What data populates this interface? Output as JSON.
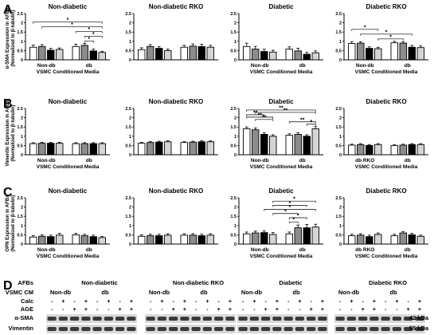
{
  "panel_letters": [
    "A",
    "B",
    "C",
    "D"
  ],
  "chart_data": [
    {
      "panel": "A",
      "type": "bar",
      "title": "Non-diabetic",
      "ylabel_lines": [
        "α-SMA Expression in AFBs",
        "(Normalized to β-tubulin)"
      ],
      "xlabel": "VSMC Conditioned Media",
      "groups": [
        "Non-db",
        "db"
      ],
      "ylim": [
        0,
        2.5
      ],
      "yticks": [
        0,
        0.5,
        1,
        1.5,
        2,
        2.5
      ],
      "values": [
        0.68,
        0.72,
        0.52,
        0.56,
        0.72,
        0.78,
        0.48,
        0.4
      ],
      "errors": [
        0.12,
        0.1,
        0.1,
        0.08,
        0.12,
        0.1,
        0.1,
        0.06
      ],
      "sig": [
        {
          "a": 0,
          "b": 7,
          "label": "*"
        },
        {
          "a": 1,
          "b": 7,
          "label": "*"
        },
        {
          "a": 4,
          "b": 7,
          "label": "*"
        },
        {
          "a": 5,
          "b": 7,
          "label": "*"
        },
        {
          "a": 5,
          "b": 6,
          "label": "*"
        }
      ]
    },
    {
      "panel": "A",
      "type": "bar",
      "title": "Non-diabetic RKO",
      "groups": [
        "",
        ""
      ],
      "xlabel": "",
      "ylim": [
        0,
        2.5
      ],
      "yticks": [
        0,
        0.5,
        1,
        1.5,
        2,
        2.5
      ],
      "values": [
        0.55,
        0.72,
        0.62,
        0.5,
        0.68,
        0.74,
        0.72,
        0.68
      ],
      "errors": [
        0.1,
        0.1,
        0.1,
        0.08,
        0.1,
        0.12,
        0.12,
        0.1
      ],
      "sig": []
    },
    {
      "panel": "A",
      "type": "bar",
      "title": "Diabetic",
      "groups": [
        "Non-db",
        "db"
      ],
      "xlabel": "VSMC Conditioned Media",
      "ylim": [
        0,
        2.5
      ],
      "yticks": [
        0,
        0.5,
        1,
        1.5,
        2,
        2.5
      ],
      "values": [
        0.72,
        0.58,
        0.45,
        0.42,
        0.58,
        0.48,
        0.3,
        0.38
      ],
      "errors": [
        0.18,
        0.15,
        0.12,
        0.1,
        0.12,
        0.15,
        0.1,
        0.1
      ],
      "sig": []
    },
    {
      "panel": "A",
      "type": "bar",
      "title": "Diabetic RKO",
      "groups": [
        "Non-db",
        "db"
      ],
      "xlabel": "VSMC Conditioned Media",
      "ylim": [
        0,
        2.5
      ],
      "yticks": [
        0,
        0.5,
        1,
        1.5,
        2,
        2.5
      ],
      "values": [
        0.88,
        0.9,
        0.62,
        0.6,
        0.92,
        0.9,
        0.68,
        0.66
      ],
      "errors": [
        0.1,
        0.08,
        0.08,
        0.08,
        0.08,
        0.08,
        0.1,
        0.1
      ],
      "sig": [
        {
          "a": 0,
          "b": 3,
          "label": "*"
        },
        {
          "a": 1,
          "b": 6,
          "label": "*"
        },
        {
          "a": 3,
          "b": 5,
          "label": "*"
        }
      ]
    },
    {
      "panel": "B",
      "type": "bar",
      "title": "Non-diabetic",
      "ylabel_lines": [
        "Vimentin Expression in AFBs",
        "(Normalized to β-tubulin)"
      ],
      "xlabel": "VSMC Conditioned Media",
      "groups": [
        "Non-db",
        "db"
      ],
      "ylim": [
        0,
        2.5
      ],
      "yticks": [
        0,
        0.5,
        1,
        1.5,
        2,
        2.5
      ],
      "values": [
        0.6,
        0.62,
        0.62,
        0.62,
        0.6,
        0.6,
        0.6,
        0.6
      ],
      "errors": [
        0.05,
        0.05,
        0.05,
        0.05,
        0.05,
        0.05,
        0.05,
        0.05
      ],
      "sig": []
    },
    {
      "panel": "B",
      "type": "bar",
      "title": "Non-diabetic RKO",
      "groups": [
        "",
        ""
      ],
      "xlabel": "",
      "ylim": [
        0,
        2.5
      ],
      "yticks": [
        0,
        0.5,
        1,
        1.5,
        2,
        2.5
      ],
      "values": [
        0.62,
        0.66,
        0.68,
        0.7,
        0.66,
        0.68,
        0.7,
        0.7
      ],
      "errors": [
        0.05,
        0.05,
        0.05,
        0.05,
        0.05,
        0.05,
        0.05,
        0.05
      ],
      "sig": []
    },
    {
      "panel": "B",
      "type": "bar",
      "title": "Diabetic",
      "groups": [
        "Non-db",
        "db"
      ],
      "xlabel": "VSMC Conditioned Media",
      "ylim": [
        0,
        2.5
      ],
      "yticks": [
        0,
        0.5,
        1,
        1.5,
        2,
        2.5
      ],
      "values": [
        1.4,
        1.35,
        1.1,
        1.0,
        1.05,
        1.1,
        1.0,
        1.4
      ],
      "errors": [
        0.1,
        0.1,
        0.08,
        0.08,
        0.08,
        0.08,
        0.08,
        0.12
      ],
      "sig": [
        {
          "a": 0,
          "b": 7,
          "label": "**"
        },
        {
          "a": 1,
          "b": 7,
          "label": "**"
        },
        {
          "a": 0,
          "b": 2,
          "label": "**"
        },
        {
          "a": 0,
          "b": 3,
          "label": "**"
        },
        {
          "a": 1,
          "b": 3,
          "label": "**"
        },
        {
          "a": 4,
          "b": 7,
          "label": "**"
        },
        {
          "a": 6,
          "b": 7,
          "label": "*"
        }
      ]
    },
    {
      "panel": "B",
      "type": "bar",
      "title": "Diabetic RKO",
      "groups": [
        "db RKO",
        "db"
      ],
      "xlabel": "VSMC Conditioned Media",
      "ylim": [
        0,
        2.5
      ],
      "yticks": [
        0,
        0.5,
        1,
        1.5,
        2,
        2.5
      ],
      "values": [
        0.52,
        0.55,
        0.5,
        0.55,
        0.5,
        0.52,
        0.55,
        0.55
      ],
      "errors": [
        0.05,
        0.05,
        0.05,
        0.05,
        0.05,
        0.05,
        0.05,
        0.05
      ],
      "sig": []
    },
    {
      "panel": "C",
      "type": "bar",
      "title": "Non-diabetic",
      "ylabel_lines": [
        "OPN Expression in AFBs",
        "(Normalized to β-tubulin)"
      ],
      "xlabel": "VSMC Conditioned Media",
      "groups": [
        "Non-db",
        "db"
      ],
      "ylim": [
        0,
        2.5
      ],
      "yticks": [
        0,
        0.5,
        1,
        1.5,
        2,
        2.5
      ],
      "values": [
        0.38,
        0.42,
        0.4,
        0.48,
        0.5,
        0.45,
        0.4,
        0.35
      ],
      "errors": [
        0.08,
        0.08,
        0.08,
        0.1,
        0.08,
        0.08,
        0.08,
        0.06
      ],
      "sig": []
    },
    {
      "panel": "C",
      "type": "bar",
      "title": "Non-diabetic RKO",
      "groups": [
        "",
        ""
      ],
      "xlabel": "",
      "ylim": [
        0,
        2.5
      ],
      "yticks": [
        0,
        0.5,
        1,
        1.5,
        2,
        2.5
      ],
      "values": [
        0.42,
        0.45,
        0.45,
        0.48,
        0.48,
        0.48,
        0.45,
        0.48
      ],
      "errors": [
        0.08,
        0.08,
        0.08,
        0.08,
        0.08,
        0.08,
        0.08,
        0.08
      ],
      "sig": []
    },
    {
      "panel": "C",
      "type": "bar",
      "title": "Diabetic",
      "groups": [
        "Non-db",
        "db"
      ],
      "xlabel": "VSMC Conditioned Media",
      "ylim": [
        0,
        2.5
      ],
      "yticks": [
        0,
        0.5,
        1,
        1.5,
        2,
        2.5
      ],
      "values": [
        0.55,
        0.6,
        0.62,
        0.52,
        0.55,
        0.88,
        0.88,
        0.92
      ],
      "errors": [
        0.1,
        0.1,
        0.1,
        0.1,
        0.1,
        0.15,
        0.18,
        0.15
      ],
      "sig": [
        {
          "a": 3,
          "b": 7,
          "label": "*"
        },
        {
          "a": 3,
          "b": 6,
          "label": "*"
        },
        {
          "a": 2,
          "b": 7,
          "label": "*"
        },
        {
          "a": 3,
          "b": 5,
          "label": "*"
        },
        {
          "a": 4,
          "b": 6,
          "label": "*"
        },
        {
          "a": 4,
          "b": 5,
          "label": "*"
        }
      ]
    },
    {
      "panel": "C",
      "type": "bar",
      "title": "Diabetic RKO",
      "groups": [
        "db RKO",
        "db"
      ],
      "xlabel": "VSMC Conditioned Media",
      "ylim": [
        0,
        2.5
      ],
      "yticks": [
        0,
        0.5,
        1,
        1.5,
        2,
        2.5
      ],
      "values": [
        0.45,
        0.48,
        0.4,
        0.52,
        0.45,
        0.6,
        0.5,
        0.42
      ],
      "errors": [
        0.08,
        0.08,
        0.08,
        0.08,
        0.08,
        0.08,
        0.08,
        0.06
      ],
      "sig": []
    }
  ],
  "bar_colors": [
    "#ffffff",
    "#8c8c8c",
    "#000000",
    "#d4d4d4"
  ],
  "western_blot": {
    "row_labels": [
      "AFBs",
      "VSMC CM",
      "Calc",
      "AGE",
      "α-SMA",
      "Vimentin"
    ],
    "blocks": [
      {
        "title": "Non-diabetic",
        "groups": [
          "Non-db",
          "db"
        ]
      },
      {
        "title": "Non-diabetic RKO",
        "groups": [
          "Non-db",
          "db"
        ]
      },
      {
        "title": "Diabetic",
        "groups": [
          "Non-db",
          "db"
        ]
      },
      {
        "title": "Diabetic RKO",
        "groups": [
          "Non-db",
          "db"
        ]
      }
    ],
    "calc_signs": [
      "-",
      "+",
      "-",
      "+",
      "-",
      "+",
      "-",
      "+"
    ],
    "age_signs": [
      "-",
      "-",
      "+",
      "+",
      "-",
      "-",
      "+",
      "+"
    ],
    "band_sizes": [
      "42 kDa",
      "55 kDa"
    ]
  }
}
